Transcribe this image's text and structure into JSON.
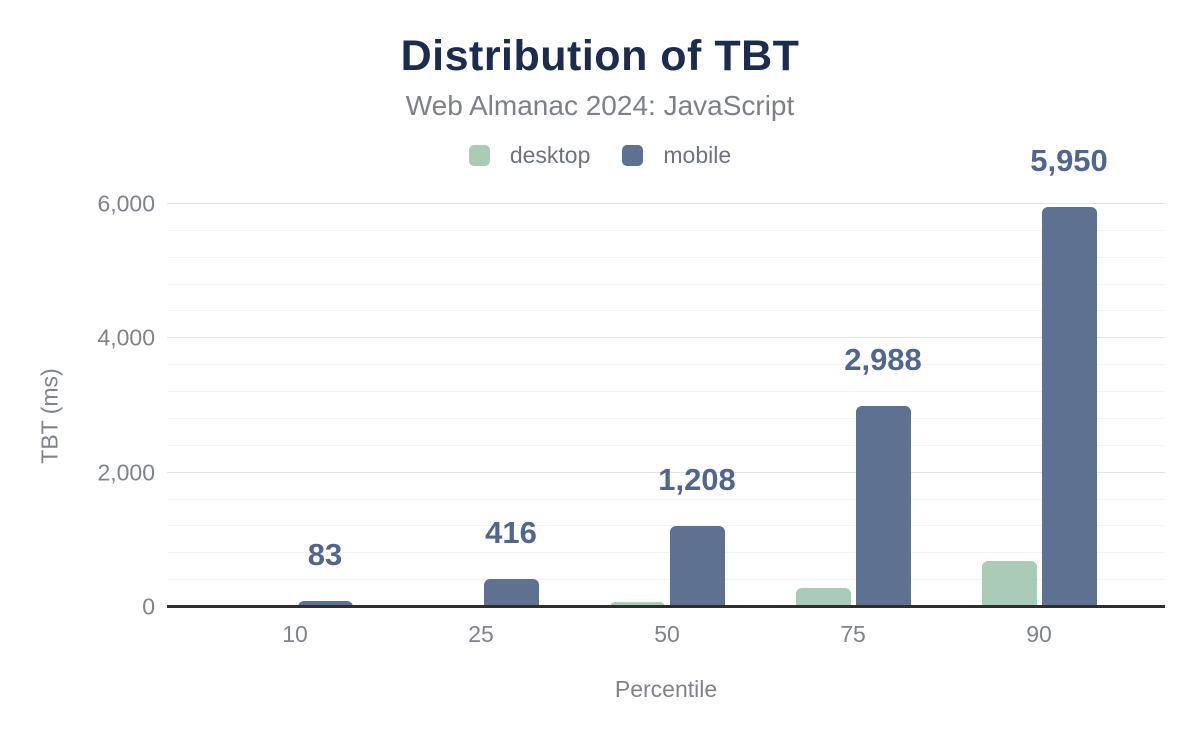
{
  "header": {
    "title": "Distribution of TBT",
    "subtitle": "Web Almanac 2024: JavaScript"
  },
  "legend": [
    {
      "label": "desktop",
      "color": "#a9cbb8"
    },
    {
      "label": "mobile",
      "color": "#5f7191"
    }
  ],
  "chart_data": {
    "type": "bar",
    "title": "Distribution of TBT",
    "subtitle": "Web Almanac 2024: JavaScript",
    "categories": [
      "10",
      "25",
      "50",
      "75",
      "90"
    ],
    "xlabel": "Percentile",
    "ylabel": "TBT (ms)",
    "ylim": [
      0,
      6000
    ],
    "y_major_ticks": [
      0,
      2000,
      4000,
      6000
    ],
    "y_tick_labels": [
      "0",
      "2,000",
      "4,000",
      "6,000"
    ],
    "minor_grid_step": 400,
    "grid": true,
    "legend_position": "top",
    "series": [
      {
        "name": "desktop",
        "color": "#a9cbb8",
        "values": [
          0,
          5,
          70,
          280,
          680
        ],
        "labels": [
          "",
          "",
          "",
          "",
          ""
        ],
        "values_estimated_from_bar_heights": true
      },
      {
        "name": "mobile",
        "color": "#5f7191",
        "values": [
          83,
          416,
          1208,
          2988,
          5950
        ],
        "labels": [
          "83",
          "416",
          "1,208",
          "2,988",
          "5,950"
        ]
      }
    ]
  },
  "colors": {
    "title": "#1b2c4f",
    "subtitle": "#7d8187",
    "tick_text": "#7f838a",
    "value_label": "#50668e",
    "grid_major": "#e4e4e4",
    "grid_minor": "#f3f3f3",
    "axis_line": "#2e2e2e",
    "background": "#ffffff"
  }
}
